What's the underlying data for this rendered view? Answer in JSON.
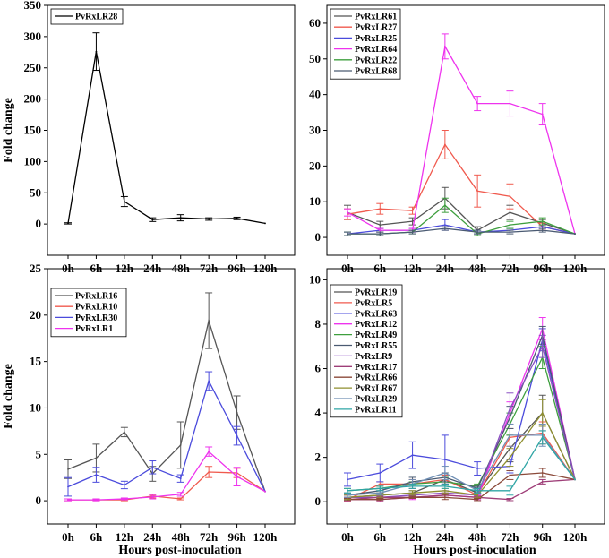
{
  "chart_data": [
    {
      "type": "line",
      "panel": "top-left",
      "ylabel": "Fold change",
      "xlabel": "",
      "categories": [
        "0h",
        "6h",
        "12h",
        "24h",
        "48h",
        "72h",
        "96h",
        "120h"
      ],
      "ylim": [
        -50,
        350
      ],
      "yticks": [
        0,
        50,
        100,
        150,
        200,
        250,
        300,
        350
      ],
      "legend_position": "top-left",
      "series": [
        {
          "name": "PvRxLR28",
          "color": "#000000",
          "values": [
            1,
            276,
            36,
            7,
            10,
            8,
            9,
            1
          ],
          "errors": [
            1,
            30,
            8,
            3,
            5,
            2,
            2,
            0
          ]
        }
      ]
    },
    {
      "type": "line",
      "panel": "top-right",
      "ylabel": "",
      "xlabel": "",
      "categories": [
        "0h",
        "6h",
        "12h",
        "24h",
        "48h",
        "72h",
        "96h",
        "120h"
      ],
      "ylim": [
        -5,
        65
      ],
      "yticks": [
        0,
        10,
        20,
        30,
        40,
        50,
        60
      ],
      "legend_position": "top-left",
      "series": [
        {
          "name": "PvRxLR61",
          "color": "#555555",
          "values": [
            7,
            3.5,
            4.5,
            11,
            2,
            7,
            4,
            1
          ],
          "errors": [
            2,
            1,
            1,
            3,
            1,
            2,
            1,
            0
          ]
        },
        {
          "name": "PvRxLR27",
          "color": "#f05a4e",
          "values": [
            6.5,
            8,
            7.5,
            26,
            13,
            11.5,
            3,
            1
          ],
          "errors": [
            1.5,
            1.5,
            1,
            4,
            4.5,
            3.5,
            1,
            0
          ]
        },
        {
          "name": "PvRxLR25",
          "color": "#4b4bdc",
          "values": [
            1,
            2,
            2,
            3.5,
            1.5,
            2,
            3,
            1
          ],
          "errors": [
            0.5,
            0.5,
            0.5,
            1.5,
            0.5,
            0.5,
            0.5,
            0
          ]
        },
        {
          "name": "PvRxLR64",
          "color": "#ee33ee",
          "values": [
            7,
            2,
            2,
            53.5,
            37.5,
            37.5,
            34.5,
            1
          ],
          "errors": [
            1,
            0.5,
            0.5,
            3.5,
            2,
            3.5,
            3,
            0
          ]
        },
        {
          "name": "PvRxLR22",
          "color": "#3e9f3e",
          "values": [
            1,
            1,
            1.5,
            9,
            1,
            3.5,
            4.5,
            1
          ],
          "errors": [
            0.5,
            0.5,
            0.5,
            2,
            0.5,
            1,
            1,
            0
          ]
        },
        {
          "name": "PvRxLR68",
          "color": "#4a5a72",
          "values": [
            1,
            1,
            1.5,
            2.5,
            1.5,
            1.5,
            2,
            1
          ],
          "errors": [
            0.5,
            0.5,
            0.5,
            0.5,
            0.5,
            0.5,
            0.5,
            0
          ]
        }
      ]
    },
    {
      "type": "line",
      "panel": "bottom-left",
      "ylabel": "Fold change",
      "xlabel": "Hours post-inoculation",
      "categories": [
        "0h",
        "6h",
        "12h",
        "24h",
        "48h",
        "72h",
        "96h",
        "120h"
      ],
      "ylim": [
        -2.5,
        25
      ],
      "yticks": [
        0,
        5,
        10,
        15,
        20,
        25
      ],
      "legend_position": "top-left",
      "series": [
        {
          "name": "PvRxLR16",
          "color": "#555555",
          "values": [
            3.4,
            4.6,
            7.4,
            2.9,
            6.0,
            19.4,
            9.5,
            1
          ],
          "errors": [
            1,
            1.5,
            0.5,
            0.8,
            2.5,
            3,
            1.8,
            0
          ]
        },
        {
          "name": "PvRxLR10",
          "color": "#f05a4e",
          "values": [
            0.1,
            0.1,
            0.1,
            0.5,
            0.2,
            3.1,
            3.0,
            1
          ],
          "errors": [
            0.1,
            0.1,
            0.1,
            0.2,
            0.1,
            0.6,
            0.5,
            0
          ]
        },
        {
          "name": "PvRxLR30",
          "color": "#4b4bdc",
          "values": [
            1.5,
            2.8,
            1.7,
            3.6,
            2.4,
            12.9,
            7.0,
            1
          ],
          "errors": [
            1,
            0.8,
            0.4,
            0.7,
            0.4,
            1,
            1,
            0
          ]
        },
        {
          "name": "PvRxLR1",
          "color": "#ee33ee",
          "values": [
            0.1,
            0.1,
            0.2,
            0.4,
            0.7,
            5.3,
            2.6,
            1
          ],
          "errors": [
            0.1,
            0.1,
            0.1,
            0.2,
            0.2,
            0.5,
            1,
            0
          ]
        }
      ]
    },
    {
      "type": "line",
      "panel": "bottom-right",
      "ylabel": "",
      "xlabel": "Hours post-inoculation",
      "categories": [
        "0h",
        "6h",
        "12h",
        "24h",
        "48h",
        "72h",
        "96h",
        "120h"
      ],
      "ylim": [
        -1,
        10.5
      ],
      "yticks": [
        0,
        2,
        4,
        6,
        8,
        10
      ],
      "legend_position": "top-left",
      "series": [
        {
          "name": "PvRxLR19",
          "color": "#555555",
          "values": [
            0.2,
            0.3,
            0.4,
            1.0,
            0.4,
            2.4,
            4.0,
            1
          ],
          "errors": [
            0.1,
            0.1,
            0.1,
            0.2,
            0.1,
            0.6,
            0.8,
            0
          ]
        },
        {
          "name": "PvRxLR5",
          "color": "#f05a4e",
          "values": [
            0.1,
            0.8,
            0.8,
            1.0,
            0.3,
            2.9,
            3.1,
            1
          ],
          "errors": [
            0.1,
            0.1,
            0.2,
            0.2,
            0.1,
            0.4,
            0.5,
            0
          ]
        },
        {
          "name": "PvRxLR63",
          "color": "#4b4bdc",
          "values": [
            1.0,
            1.3,
            2.1,
            1.9,
            1.5,
            1.6,
            7.3,
            1
          ],
          "errors": [
            0.3,
            0.4,
            0.6,
            1.1,
            0.3,
            0.3,
            0.5,
            0
          ]
        },
        {
          "name": "PvRxLR12",
          "color": "#ee33ee",
          "values": [
            0.1,
            0.1,
            0.2,
            0.3,
            0.2,
            4.0,
            7.8,
            1
          ],
          "errors": [
            0.1,
            0.1,
            0.1,
            0.1,
            0.1,
            0.5,
            0.5,
            0
          ]
        },
        {
          "name": "PvRxLR49",
          "color": "#3e9f3e",
          "values": [
            0.5,
            0.6,
            0.8,
            0.9,
            0.7,
            3.5,
            6.5,
            1
          ],
          "errors": [
            0.1,
            0.1,
            0.1,
            0.2,
            0.1,
            0.5,
            0.5,
            0
          ]
        },
        {
          "name": "PvRxLR55",
          "color": "#4a5a72",
          "values": [
            0.3,
            0.5,
            0.9,
            1.1,
            0.6,
            3.8,
            7.5,
            1
          ],
          "errors": [
            0.1,
            0.1,
            0.2,
            0.2,
            0.1,
            0.5,
            0.4,
            0
          ]
        },
        {
          "name": "PvRxLR9",
          "color": "#8a4fc2",
          "values": [
            0.2,
            0.2,
            0.3,
            0.4,
            0.3,
            4.2,
            7.0,
            1
          ],
          "errors": [
            0.1,
            0.1,
            0.1,
            0.1,
            0.1,
            0.7,
            0.5,
            0
          ]
        },
        {
          "name": "PvRxLR17",
          "color": "#9e3e78",
          "values": [
            0.1,
            0.2,
            0.2,
            0.3,
            0.2,
            0.1,
            0.9,
            1
          ],
          "errors": [
            0.05,
            0.05,
            0.05,
            0.1,
            0.05,
            0.05,
            0.1,
            0
          ]
        },
        {
          "name": "PvRxLR66",
          "color": "#8b4a3a",
          "values": [
            0.1,
            0.1,
            0.2,
            0.2,
            0.1,
            1.2,
            1.3,
            1
          ],
          "errors": [
            0.05,
            0.05,
            0.05,
            0.1,
            0.05,
            0.2,
            0.2,
            0
          ]
        },
        {
          "name": "PvRxLR67",
          "color": "#8f8f2f",
          "values": [
            0.2,
            0.3,
            0.4,
            0.5,
            0.3,
            2.0,
            4.0,
            1
          ],
          "errors": [
            0.1,
            0.1,
            0.1,
            0.1,
            0.1,
            0.4,
            0.6,
            0
          ]
        },
        {
          "name": "PvRxLR29",
          "color": "#6f8fb5",
          "values": [
            0.3,
            0.4,
            0.8,
            1.3,
            0.5,
            3.0,
            3.0,
            1
          ],
          "errors": [
            0.1,
            0.1,
            0.2,
            0.3,
            0.1,
            0.5,
            0.5,
            0
          ]
        },
        {
          "name": "PvRxLR11",
          "color": "#2fa5a5",
          "values": [
            0.5,
            0.6,
            0.7,
            0.7,
            0.5,
            0.5,
            2.9,
            1
          ],
          "errors": [
            0.1,
            0.1,
            0.1,
            0.1,
            0.1,
            0.2,
            0.3,
            0
          ]
        }
      ]
    }
  ]
}
